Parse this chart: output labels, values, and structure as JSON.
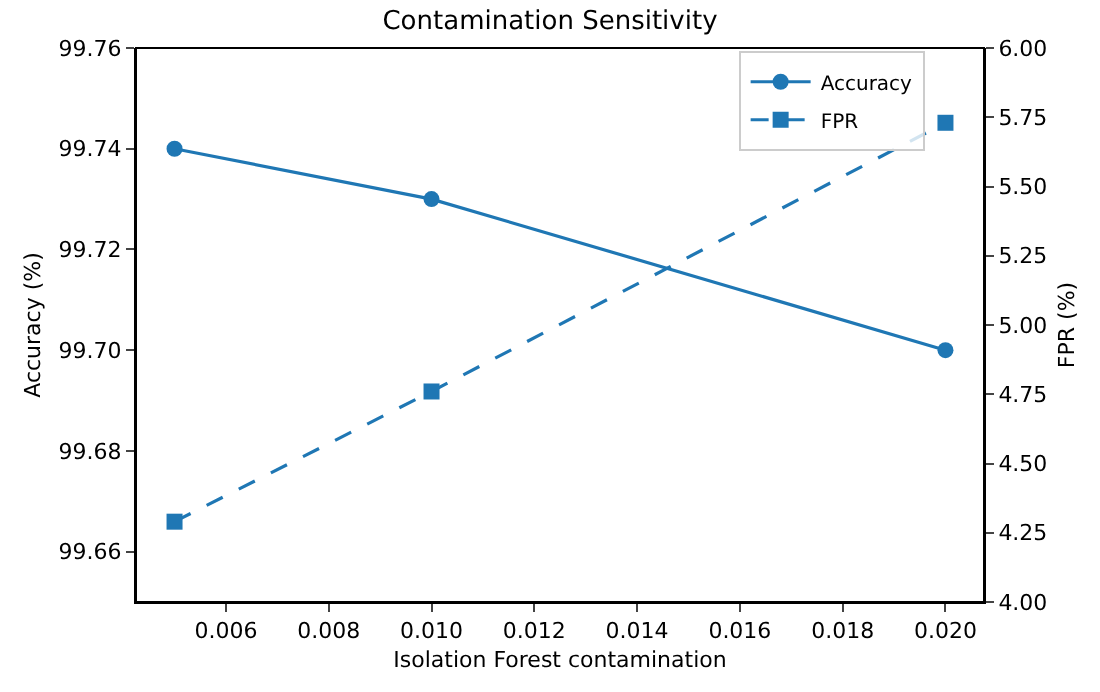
{
  "chart_data": {
    "type": "line",
    "title": "Contamination Sensitivity",
    "xlabel": "Isolation Forest contamination",
    "ylabel": "Accuracy (%)",
    "y2label": "FPR (%)",
    "x": [
      0.005,
      0.01,
      0.02
    ],
    "series": [
      {
        "name": "Accuracy",
        "color": "#1f77b4",
        "values": [
          99.74,
          99.73,
          99.7
        ],
        "marker": "circle",
        "line_style": "solid"
      },
      {
        "name": "FPR",
        "color": "#1f77b4",
        "values": [
          4.29,
          4.76,
          5.73
        ],
        "marker": "square",
        "line_style": "dashed",
        "axis": "y2"
      }
    ],
    "xlim": [
      0.00425,
      0.02075
    ],
    "xticks": [
      0.006,
      0.008,
      {
        "value": 0.01,
        "label": "0.010"
      },
      0.012,
      0.014,
      0.016,
      0.018,
      {
        "value": 0.02,
        "label": "0.020"
      }
    ],
    "ylim": [
      99.65,
      99.76
    ],
    "yticks": [
      99.66,
      99.68,
      {
        "value": 99.7,
        "label": "99.70"
      },
      99.72,
      99.74,
      99.76
    ],
    "y2lim": [
      4.0,
      6.0
    ],
    "y2ticks": [
      {
        "value": 4,
        "label": "4.00"
      },
      4.25,
      {
        "value": 4.5,
        "label": "4.50"
      },
      4.75,
      {
        "value": 5,
        "label": "5.00"
      },
      5.25,
      {
        "value": 5.5,
        "label": "5.50"
      },
      5.75,
      {
        "value": 6,
        "label": "6.00"
      }
    ],
    "legend": "top right"
  }
}
